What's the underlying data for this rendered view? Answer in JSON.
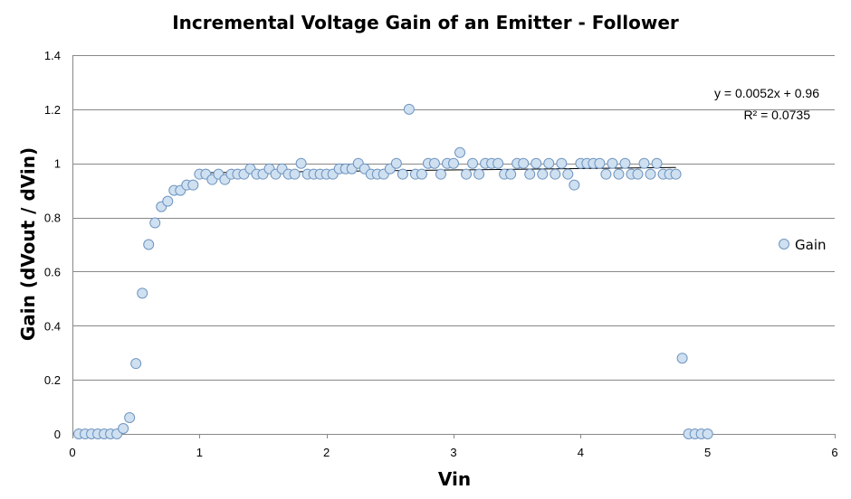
{
  "chart_data": {
    "type": "scatter",
    "title": "Incremental Voltage Gain of an Emitter - Follower",
    "xlabel": "Vin",
    "ylabel": "Gain (dVout / dVin)",
    "xlim": [
      0,
      6
    ],
    "ylim": [
      0,
      1.4
    ],
    "xticks": [
      0,
      1,
      2,
      3,
      4,
      5,
      6
    ],
    "yticks": [
      0,
      0.2,
      0.4,
      0.6,
      0.8,
      1,
      1.2,
      1.4
    ],
    "grid": "horizontal",
    "legend_position": "right",
    "series": [
      {
        "name": "Gain",
        "marker": "circle",
        "color": "#cfe0f1",
        "edge_color": "#6f95c0",
        "x": [
          0.05,
          0.1,
          0.15,
          0.2,
          0.25,
          0.3,
          0.35,
          0.4,
          0.45,
          0.5,
          0.55,
          0.6,
          0.65,
          0.7,
          0.75,
          0.8,
          0.85,
          0.9,
          0.95,
          1.0,
          1.05,
          1.1,
          1.15,
          1.2,
          1.25,
          1.3,
          1.35,
          1.4,
          1.45,
          1.5,
          1.55,
          1.6,
          1.65,
          1.7,
          1.75,
          1.8,
          1.85,
          1.9,
          1.95,
          2.0,
          2.05,
          2.1,
          2.15,
          2.2,
          2.25,
          2.3,
          2.35,
          2.4,
          2.45,
          2.5,
          2.55,
          2.6,
          2.65,
          2.7,
          2.75,
          2.8,
          2.85,
          2.9,
          2.95,
          3.0,
          3.05,
          3.1,
          3.15,
          3.2,
          3.25,
          3.3,
          3.35,
          3.4,
          3.45,
          3.5,
          3.55,
          3.6,
          3.65,
          3.7,
          3.75,
          3.8,
          3.85,
          3.9,
          3.95,
          4.0,
          4.05,
          4.1,
          4.15,
          4.2,
          4.25,
          4.3,
          4.35,
          4.4,
          4.45,
          4.5,
          4.55,
          4.6,
          4.65,
          4.7,
          4.75,
          4.8,
          4.85,
          4.9,
          4.95,
          5.0
        ],
        "y": [
          0,
          0,
          0,
          0,
          0,
          0,
          0,
          0.02,
          0.06,
          0.26,
          0.52,
          0.7,
          0.78,
          0.84,
          0.86,
          0.9,
          0.9,
          0.92,
          0.92,
          0.96,
          0.96,
          0.94,
          0.96,
          0.94,
          0.96,
          0.96,
          0.96,
          0.98,
          0.96,
          0.96,
          0.98,
          0.96,
          0.98,
          0.96,
          0.96,
          1.0,
          0.96,
          0.96,
          0.96,
          0.96,
          0.96,
          0.98,
          0.98,
          0.98,
          1.0,
          0.98,
          0.96,
          0.96,
          0.96,
          0.98,
          1.0,
          0.96,
          1.2,
          0.96,
          0.96,
          1.0,
          1.0,
          0.96,
          1.0,
          1.0,
          1.04,
          0.96,
          1.0,
          0.96,
          1.0,
          1.0,
          1.0,
          0.96,
          0.96,
          1.0,
          1.0,
          0.96,
          1.0,
          0.96,
          1.0,
          0.96,
          1.0,
          0.96,
          0.92,
          1.0,
          1.0,
          1.0,
          1.0,
          0.96,
          1.0,
          0.96,
          1.0,
          0.96,
          0.96,
          1.0,
          0.96,
          1.0,
          0.96,
          0.96,
          0.96,
          0.28,
          0,
          0,
          0,
          0
        ]
      }
    ],
    "trendline": {
      "type": "linear",
      "x_range": [
        1.0,
        4.75
      ],
      "slope": 0.0052,
      "intercept": 0.96,
      "equation_label": "y = 0.0052x + 0.96",
      "r2_label": "R² = 0.0735"
    }
  }
}
